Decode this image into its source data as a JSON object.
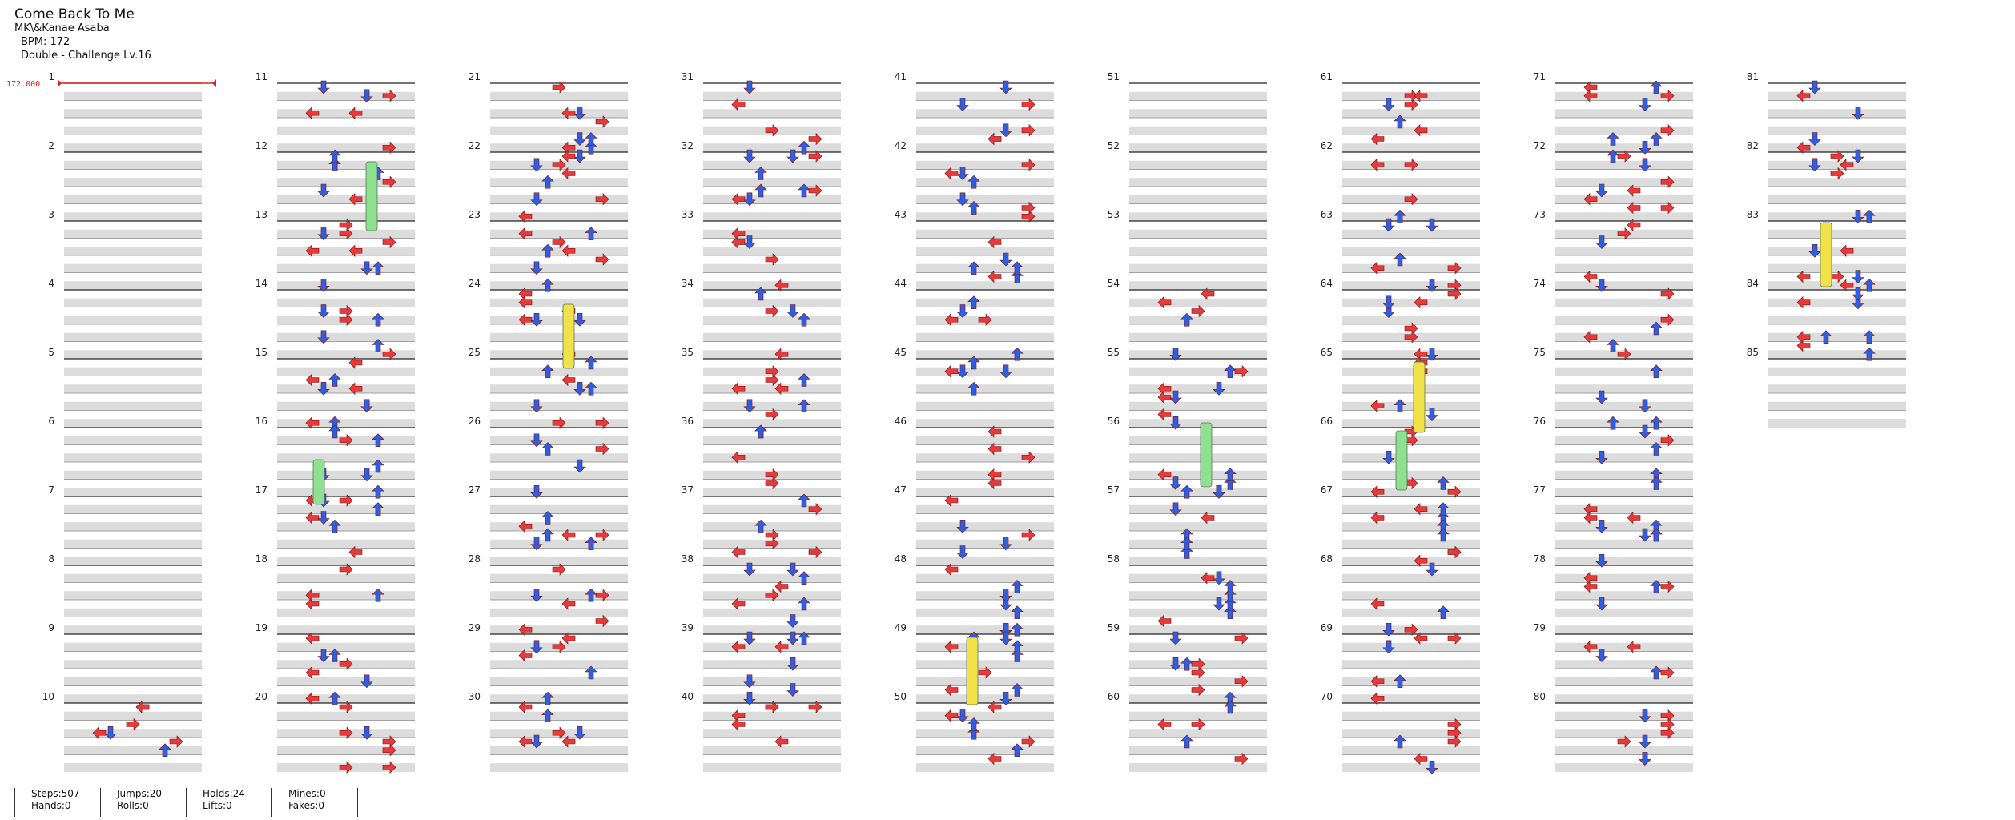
{
  "header": {
    "title": "Come Back To Me",
    "artist": "MK\\&Kanae Asaba",
    "bpm": "BPM: 172",
    "difficulty": "Double - Challenge  Lv.16"
  },
  "bpm_marker": {
    "label": "172.000",
    "color": "#e02020"
  },
  "chart": {
    "columns": 9,
    "measures_per_column": 10,
    "first_measure": 1,
    "last_measure": 85,
    "numbered_every": 1,
    "colors": {
      "left_right_red": "#e83a3a",
      "up_down_blue": "#2f5fe0",
      "hold_green": "#8fe08f",
      "roll_yellow": "#f2e24a",
      "band_gray": "#dcdcdc"
    },
    "measure_labels": [
      "1",
      "2",
      "3",
      "4",
      "5",
      "6",
      "7",
      "8",
      "9",
      "10",
      "11",
      "12",
      "13",
      "14",
      "15",
      "16",
      "17",
      "18",
      "19",
      "20",
      "21",
      "22",
      "23",
      "24",
      "25",
      "26",
      "27",
      "28",
      "29",
      "30",
      "31",
      "32",
      "33",
      "34",
      "35",
      "36",
      "37",
      "38",
      "39",
      "40",
      "41",
      "42",
      "43",
      "44",
      "45",
      "46",
      "47",
      "48",
      "49",
      "50",
      "51",
      "52",
      "53",
      "54",
      "55",
      "56",
      "57",
      "58",
      "59",
      "60",
      "61",
      "62",
      "63",
      "64",
      "65",
      "66",
      "67",
      "68",
      "69",
      "70",
      "71",
      "72",
      "73",
      "74",
      "75",
      "76",
      "77",
      "78",
      "79",
      "80",
      "81",
      "82",
      "83",
      "84",
      "85"
    ]
  },
  "footer": {
    "steps": "Steps:507",
    "hands": "Hands:0",
    "jumps": "Jumps:20",
    "rolls": "Rolls:0",
    "holds": "Holds:24",
    "lifts": "Lifts:0",
    "mines": "Mines:0",
    "fakes": "Fakes:0"
  }
}
